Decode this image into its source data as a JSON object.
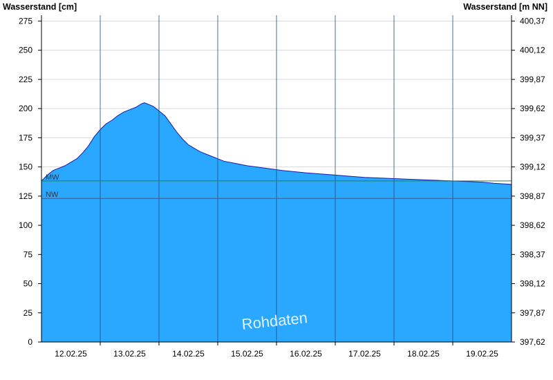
{
  "chart_data": {
    "type": "area",
    "left_axis_title": "Wasserstand [cm]",
    "right_axis_title": "Wasserstand [m NN]",
    "left_ticks": [
      0,
      25,
      50,
      75,
      100,
      125,
      150,
      175,
      200,
      225,
      250,
      275
    ],
    "right_ticks": [
      "397,62",
      "397,87",
      "398,12",
      "398,37",
      "398,62",
      "398,87",
      "399,12",
      "399,37",
      "399,62",
      "399,87",
      "400,12",
      "400,37"
    ],
    "ylim": [
      0,
      280
    ],
    "x_labels": [
      "12.02.25",
      "13.02.25",
      "14.02.25",
      "15.02.25",
      "16.02.25",
      "17.02.25",
      "18.02.25",
      "19.02.25"
    ],
    "x_range_days": [
      -0.5,
      7.5
    ],
    "series": [
      {
        "color": "#2aa8ff",
        "points": [
          [
            -0.5,
            138
          ],
          [
            -0.4,
            143
          ],
          [
            -0.3,
            147
          ],
          [
            -0.2,
            149
          ],
          [
            -0.1,
            151
          ],
          [
            0.0,
            154
          ],
          [
            0.1,
            157
          ],
          [
            0.2,
            162
          ],
          [
            0.3,
            168
          ],
          [
            0.4,
            176
          ],
          [
            0.5,
            182
          ],
          [
            0.6,
            187
          ],
          [
            0.7,
            190
          ],
          [
            0.8,
            194
          ],
          [
            0.9,
            197
          ],
          [
            1.0,
            199
          ],
          [
            1.1,
            201
          ],
          [
            1.2,
            204
          ],
          [
            1.25,
            205
          ],
          [
            1.3,
            204
          ],
          [
            1.4,
            202
          ],
          [
            1.5,
            198
          ],
          [
            1.6,
            194
          ],
          [
            1.7,
            187
          ],
          [
            1.8,
            180
          ],
          [
            1.9,
            174
          ],
          [
            2.0,
            169
          ],
          [
            2.2,
            163
          ],
          [
            2.4,
            159
          ],
          [
            2.6,
            155
          ],
          [
            2.8,
            153
          ],
          [
            3.0,
            151
          ],
          [
            3.3,
            149
          ],
          [
            3.6,
            147
          ],
          [
            4.0,
            145
          ],
          [
            4.5,
            143
          ],
          [
            5.0,
            141
          ],
          [
            5.5,
            140
          ],
          [
            6.0,
            139
          ],
          [
            6.5,
            138
          ],
          [
            7.0,
            137
          ],
          [
            7.2,
            136
          ],
          [
            7.5,
            135
          ]
        ]
      }
    ],
    "reference_lines": [
      {
        "label": "MW",
        "value": 138,
        "color": "#2e7d32"
      },
      {
        "label": "NW",
        "value": 123,
        "color": "#c62828"
      }
    ],
    "watermark": "Rohdaten",
    "grid": true
  }
}
